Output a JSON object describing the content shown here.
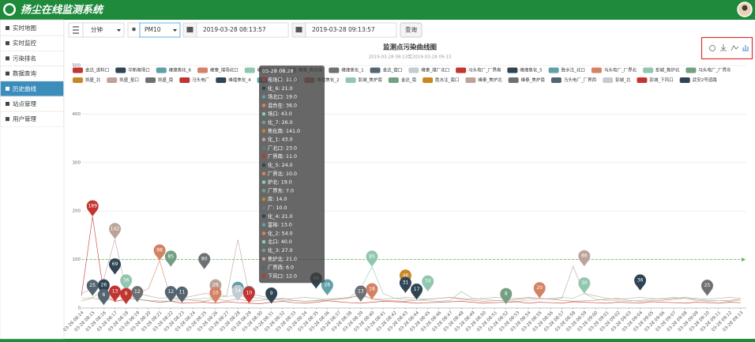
{
  "header": {
    "title": "扬尘在线监测系统"
  },
  "sidebar": {
    "items": [
      "实时地图",
      "实时监控",
      "污染排名",
      "数据查询",
      "历史曲线",
      "站点管理",
      "用户管理"
    ],
    "active": 4
  },
  "toolbar": {
    "interval": "分钟",
    "pollutant": "PM10",
    "start": "2019-03-28 08:13:57",
    "end": "2019-03-28 09:13:57",
    "button": "查询"
  },
  "chart_data": {
    "type": "line",
    "title": "监测点污染曲线图",
    "subtitle": "2019-03-28 08:13至2019-03-28 09:13",
    "categories": [
      "03-28 08:14",
      "03-28 08:15",
      "03-28 08:16",
      "03-28 08:17",
      "03-28 08:18",
      "03-28 08:19",
      "03-28 08:20",
      "03-28 08:21",
      "03-28 08:22",
      "03-28 08:23",
      "03-28 08:24",
      "03-28 08:25",
      "03-28 08:26",
      "03-28 08:27",
      "03-28 08:28",
      "03-28 08:29",
      "03-28 08:30",
      "03-28 08:31",
      "03-28 08:32",
      "03-28 08:33",
      "03-28 08:34",
      "03-28 08:35",
      "03-28 08:36",
      "03-28 08:37",
      "03-28 08:38",
      "03-28 08:39",
      "03-28 08:40",
      "03-28 08:41",
      "03-28 08:42",
      "03-28 08:43",
      "03-28 08:44",
      "03-28 08:45",
      "03-28 08:46",
      "03-28 08:47",
      "03-28 08:48",
      "03-28 08:49",
      "03-28 08:50",
      "03-28 08:51",
      "03-28 08:52",
      "03-28 08:53",
      "03-28 08:54",
      "03-28 08:55",
      "03-28 08:56",
      "03-28 08:57",
      "03-28 08:58",
      "03-28 08:59",
      "03-28 09:00",
      "03-28 09:01",
      "03-28 09:02",
      "03-28 09:03",
      "03-28 09:04",
      "03-28 09:05",
      "03-28 09:06",
      "03-28 09:07",
      "03-28 09:08",
      "03-28 09:09",
      "03-28 09:10",
      "03-28 09:11",
      "03-28 09:12",
      "03-28 09:13"
    ],
    "ylim": [
      0,
      500
    ],
    "yticks": [
      0,
      100,
      200,
      300,
      400,
      500
    ],
    "grid": true,
    "mark_line": 100,
    "series": [
      {
        "name": "金达_进料口",
        "color": "#c23531",
        "values": [
          25,
          189,
          30,
          13,
          20,
          18,
          15,
          12,
          14,
          10,
          11,
          12,
          10,
          13,
          11,
          10,
          9,
          12,
          14,
          11,
          10,
          12,
          15,
          13,
          11,
          10,
          12,
          14,
          13,
          12,
          10,
          11,
          12,
          13,
          14,
          12,
          10,
          11,
          12,
          13,
          10,
          12,
          11,
          10,
          13,
          12,
          11,
          10,
          12,
          11,
          10,
          13,
          12,
          11,
          10,
          12,
          11,
          10,
          12,
          11
        ]
      },
      {
        "name": "华新南场口",
        "color": "#2f4554"
      },
      {
        "name": "峰煌焦化_6",
        "color": "#61a0a8"
      },
      {
        "name": "峰泰_煤场北口",
        "color": "#d48265",
        "values": [
          15,
          20,
          18,
          16,
          14,
          30,
          40,
          98,
          20,
          18,
          16,
          14,
          19,
          15,
          19,
          14,
          16,
          18,
          20,
          16,
          14,
          15,
          16,
          18,
          20,
          30,
          18,
          16,
          15,
          14,
          16,
          18,
          20,
          22,
          18,
          16,
          14,
          15,
          16,
          18,
          20,
          20,
          18,
          16,
          14,
          15,
          16,
          18,
          20,
          16,
          14,
          15,
          16,
          18,
          20,
          16,
          14,
          15,
          16,
          18
        ]
      },
      {
        "name": "峰煌焦化_7",
        "color": "#91c7ae",
        "values": [
          20,
          22,
          36,
          25,
          20,
          18,
          16,
          15,
          14,
          16,
          18,
          20,
          22,
          24,
          26,
          22,
          20,
          18,
          16,
          15,
          14,
          16,
          18,
          20,
          22,
          40,
          85,
          30,
          20,
          18,
          16,
          15,
          14,
          16,
          34,
          20,
          18,
          16,
          15,
          14,
          16,
          18,
          20,
          22,
          20,
          30,
          18,
          16,
          15,
          14,
          16,
          18,
          20,
          22,
          20,
          18,
          16,
          15,
          14,
          16
        ]
      },
      {
        "name": "峰泰_焦化南",
        "color": "#bda29a",
        "values": [
          30,
          40,
          60,
          142,
          36,
          30,
          25,
          20,
          22,
          20,
          25,
          30,
          28,
          25,
          141,
          30,
          25,
          20,
          18,
          20,
          22,
          20,
          18,
          20,
          22,
          25,
          20,
          18,
          20,
          22,
          20,
          18,
          20,
          22,
          20,
          18,
          20,
          22,
          20,
          20,
          22,
          20,
          18,
          20,
          86,
          30,
          25,
          20,
          18,
          20,
          22,
          20,
          18,
          20,
          22,
          20,
          18,
          20,
          22,
          20
        ]
      },
      {
        "name": "峰煌焦化_1",
        "color": "#6e7074"
      },
      {
        "name": "金达_窑口",
        "color": "#546570"
      },
      {
        "name": "峰泰_煤厂北口",
        "color": "#c4ccd3"
      },
      {
        "name": "马头电厂_厂界南",
        "color": "#c23531"
      },
      {
        "name": "峰煌焦化_5",
        "color": "#2f4554"
      },
      {
        "name": "胜水注_北口",
        "color": "#61a0a8"
      },
      {
        "name": "马头电厂_厂界北",
        "color": "#d48265"
      },
      {
        "name": "彭城_焦炉北",
        "color": "#91c7ae"
      },
      {
        "name": "马头电厂_厂界东",
        "color": "#749f83"
      },
      {
        "name": "凯盛_北",
        "color": "#ca8622"
      },
      {
        "name": "凯盛_窑口",
        "color": "#bda29a"
      },
      {
        "name": "凯盛_南",
        "color": "#6e7074"
      },
      {
        "name": "马头电厂",
        "color": "#c23531"
      },
      {
        "name": "峰煌焦化_4",
        "color": "#2f4554"
      },
      {
        "name": "马头电厂_富裕",
        "color": "#61a0a8"
      },
      {
        "name": "峰煌焦化_2",
        "color": "#d48265"
      },
      {
        "name": "彭城_焦炉南",
        "color": "#91c7ae"
      },
      {
        "name": "金达_南",
        "color": "#749f83"
      },
      {
        "name": "胜水注_南口",
        "color": "#ca8622"
      },
      {
        "name": "峰泰_焦炉北",
        "color": "#bda29a"
      },
      {
        "name": "峰泰_焦炉南",
        "color": "#6e7074"
      },
      {
        "name": "马头电厂_厂界西",
        "color": "#546570"
      },
      {
        "name": "彭城_北",
        "color": "#c4ccd3"
      },
      {
        "name": "彭城_下风口",
        "color": "#c23531"
      },
      {
        "name": "武安2号道路",
        "color": "#2f4554"
      }
    ],
    "mark_points": [
      {
        "x": 1,
        "value": 189,
        "color": "#c23531"
      },
      {
        "x": 3,
        "value": 142,
        "color": "#bda29a"
      },
      {
        "x": 7,
        "value": 98,
        "color": "#d48265"
      },
      {
        "x": 8,
        "value": 85,
        "color": "#749f83"
      },
      {
        "x": 11,
        "value": 80,
        "color": "#6e7074"
      },
      {
        "x": 3,
        "value": 69,
        "color": "#2f4554"
      },
      {
        "x": 1,
        "value": 25,
        "color": "#546570"
      },
      {
        "x": 2,
        "value": 26,
        "color": "#2f4554"
      },
      {
        "x": 2,
        "value": 6,
        "color": "#546570"
      },
      {
        "x": 3,
        "value": 13,
        "color": "#c23531"
      },
      {
        "x": 4,
        "value": 36,
        "color": "#91c7ae"
      },
      {
        "x": 4,
        "value": 8,
        "color": "#c23531"
      },
      {
        "x": 5,
        "value": 12,
        "color": "#6e7074"
      },
      {
        "x": 8,
        "value": 12,
        "color": "#546570"
      },
      {
        "x": 9,
        "value": 11,
        "color": "#546570"
      },
      {
        "x": 12,
        "value": 26,
        "color": "#bda29a"
      },
      {
        "x": 12,
        "value": 10,
        "color": "#d48265"
      },
      {
        "x": 14,
        "value": 21,
        "color": "#61a0a8"
      },
      {
        "x": 14,
        "value": 14,
        "color": "#c4ccd3"
      },
      {
        "x": 15,
        "value": 12,
        "color": "#6e7074"
      },
      {
        "x": 15,
        "value": 10,
        "color": "#c23531"
      },
      {
        "x": 17,
        "value": 9,
        "color": "#2f4554"
      },
      {
        "x": 21,
        "value": 40,
        "color": "#2f4554"
      },
      {
        "x": 22,
        "value": 26,
        "color": "#61a0a8"
      },
      {
        "x": 25,
        "value": 13,
        "color": "#6e7074"
      },
      {
        "x": 26,
        "value": 18,
        "color": "#d48265"
      },
      {
        "x": 26,
        "value": 85,
        "color": "#91c7ae"
      },
      {
        "x": 29,
        "value": 46,
        "color": "#ca8622"
      },
      {
        "x": 29,
        "value": 31,
        "color": "#2f4554"
      },
      {
        "x": 30,
        "value": 17,
        "color": "#2f4554"
      },
      {
        "x": 31,
        "value": 34,
        "color": "#91c7ae"
      },
      {
        "x": 38,
        "value": 8,
        "color": "#749f83"
      },
      {
        "x": 41,
        "value": 20,
        "color": "#d48265"
      },
      {
        "x": 45,
        "value": 86,
        "color": "#bda29a"
      },
      {
        "x": 45,
        "value": 30,
        "color": "#91c7ae"
      },
      {
        "x": 50,
        "value": 36,
        "color": "#2f4554"
      },
      {
        "x": 56,
        "value": 25,
        "color": "#6e7074"
      }
    ],
    "tooltip": {
      "title": "03-28 08:28",
      "items": [
        {
          "text": "电场口: 11.0",
          "color": "#c23531"
        },
        {
          "text": "化_6: 21.0",
          "color": "#2f4554"
        },
        {
          "text": "场北口: 19.0",
          "color": "#61a0a8"
        },
        {
          "text": "混合在: 36.0",
          "color": "#d48265"
        },
        {
          "text": "场口: 43.0",
          "color": "#91c7ae"
        },
        {
          "text": "化_7: 26.0",
          "color": "#749f83"
        },
        {
          "text": "焦化南: 141.0",
          "color": "#ca8622"
        },
        {
          "text": "化_1: 43.0",
          "color": "#bda29a"
        },
        {
          "text": "厂北口: 23.0",
          "color": "#6e7074"
        },
        {
          "text": "厂界南: 11.0",
          "color": "#c23531"
        },
        {
          "text": "化_5: 24.0",
          "color": "#2f4554"
        },
        {
          "text": "厂界北: 10.0",
          "color": "#d48265"
        },
        {
          "text": "炉北: 19.0",
          "color": "#91c7ae"
        },
        {
          "text": "厂界东: 7.0",
          "color": "#749f83"
        },
        {
          "text": "库: 14.0",
          "color": "#ca8622"
        },
        {
          "text": "厂: 10.0",
          "color": "#6e7074"
        },
        {
          "text": "化_4: 21.0",
          "color": "#2f4554"
        },
        {
          "text": "富裕: 13.0",
          "color": "#61a0a8"
        },
        {
          "text": "化_2: 54.0",
          "color": "#d48265"
        },
        {
          "text": "北口: 40.0",
          "color": "#91c7ae"
        },
        {
          "text": "化_3: 27.0",
          "color": "#749f83"
        },
        {
          "text": "焦炉北: 21.0",
          "color": "#bda29a"
        },
        {
          "text": "厂界西: 6.0",
          "color": "#546570"
        },
        {
          "text": "下风口: 12.0",
          "color": "#c23531"
        }
      ]
    }
  }
}
